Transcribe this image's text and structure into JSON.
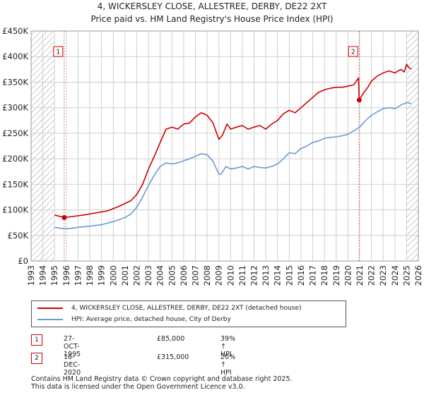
{
  "page": {
    "title_line1": "4, WICKERSLEY CLOSE, ALLESTREE, DERBY, DE22 2XT",
    "title_line2": "Price paid vs. HM Land Registry's House Price Index (HPI)"
  },
  "chart_data": {
    "type": "line",
    "ylim": [
      0,
      450000
    ],
    "xlim": [
      1993,
      2026
    ],
    "y_ticks": [
      0,
      50000,
      100000,
      150000,
      200000,
      250000,
      300000,
      350000,
      400000,
      450000
    ],
    "y_tick_labels": [
      "£0",
      "£50K",
      "£100K",
      "£150K",
      "£200K",
      "£250K",
      "£300K",
      "£350K",
      "£400K",
      "£450K"
    ],
    "x_ticks": [
      1993,
      1994,
      1995,
      1996,
      1997,
      1998,
      1999,
      2000,
      2001,
      2002,
      2003,
      2004,
      2005,
      2006,
      2007,
      2008,
      2009,
      2010,
      2011,
      2012,
      2013,
      2014,
      2015,
      2016,
      2017,
      2018,
      2019,
      2020,
      2021,
      2022,
      2023,
      2024,
      2025,
      2026
    ],
    "grid": true,
    "hatched_ranges": [
      [
        1993,
        1995.0
      ],
      [
        2025.0,
        2026
      ]
    ],
    "series": [
      {
        "name": "4, WICKERSLEY CLOSE, ALLESTREE, DERBY, DE22 2XT (detached house)",
        "color": "#cc0000",
        "x": [
          1995.0,
          1995.5,
          1995.82,
          1996.5,
          1997.5,
          1998.5,
          1999.5,
          2000.5,
          2001.5,
          2002.0,
          2002.5,
          2003.0,
          2003.5,
          2004.0,
          2004.5,
          2005.0,
          2005.5,
          2006.0,
          2006.5,
          2007.0,
          2007.5,
          2008.0,
          2008.5,
          2009.0,
          2009.3,
          2009.7,
          2010.0,
          2010.5,
          2011.0,
          2011.5,
          2012.0,
          2012.5,
          2013.0,
          2013.5,
          2014.0,
          2014.5,
          2015.0,
          2015.5,
          2016.0,
          2016.5,
          2017.0,
          2017.5,
          2018.0,
          2018.5,
          2019.0,
          2019.5,
          2020.0,
          2020.5,
          2020.9,
          2020.96,
          2021.3,
          2021.7,
          2022.0,
          2022.5,
          2023.0,
          2023.5,
          2024.0,
          2024.5,
          2024.8,
          2025.0,
          2025.2,
          2025.4
        ],
        "values": [
          90000,
          87000,
          85000,
          87000,
          90000,
          94000,
          98000,
          107000,
          118000,
          130000,
          150000,
          180000,
          205000,
          232000,
          258000,
          262000,
          258000,
          268000,
          270000,
          282000,
          290000,
          285000,
          270000,
          238000,
          246000,
          268000,
          258000,
          262000,
          265000,
          258000,
          262000,
          265000,
          258000,
          268000,
          275000,
          288000,
          295000,
          290000,
          300000,
          310000,
          320000,
          330000,
          335000,
          338000,
          340000,
          340000,
          342000,
          345000,
          358000,
          315000,
          328000,
          340000,
          352000,
          362000,
          368000,
          372000,
          368000,
          375000,
          370000,
          385000,
          378000,
          376000
        ]
      },
      {
        "name": "HPI: Average price, detached house, City of Derby",
        "color": "#6a9bd1",
        "x": [
          1995.0,
          1995.5,
          1996.0,
          1996.5,
          1997.0,
          1998.0,
          1999.0,
          2000.0,
          2001.0,
          2001.5,
          2002.0,
          2002.5,
          2003.0,
          2003.5,
          2004.0,
          2004.5,
          2005.0,
          2005.5,
          2006.0,
          2006.5,
          2007.0,
          2007.5,
          2008.0,
          2008.5,
          2009.0,
          2009.2,
          2009.6,
          2010.0,
          2010.5,
          2011.0,
          2011.5,
          2012.0,
          2012.5,
          2013.0,
          2013.5,
          2014.0,
          2014.5,
          2015.0,
          2015.5,
          2016.0,
          2016.5,
          2017.0,
          2017.5,
          2018.0,
          2018.5,
          2019.0,
          2019.5,
          2020.0,
          2020.5,
          2021.0,
          2021.5,
          2022.0,
          2022.5,
          2023.0,
          2023.5,
          2024.0,
          2024.5,
          2025.0,
          2025.4
        ],
        "values": [
          66000,
          64000,
          63000,
          64000,
          66000,
          68000,
          71000,
          77000,
          85000,
          92000,
          105000,
          125000,
          148000,
          168000,
          185000,
          192000,
          190000,
          192000,
          196000,
          200000,
          205000,
          210000,
          208000,
          195000,
          170000,
          170000,
          185000,
          180000,
          182000,
          185000,
          180000,
          185000,
          183000,
          182000,
          185000,
          190000,
          200000,
          212000,
          210000,
          220000,
          225000,
          232000,
          235000,
          240000,
          242000,
          243000,
          245000,
          248000,
          255000,
          262000,
          275000,
          285000,
          292000,
          298000,
          300000,
          298000,
          305000,
          310000,
          308000
        ]
      }
    ],
    "sales": [
      {
        "marker": "1",
        "x": 1995.82,
        "value": 85000
      },
      {
        "marker": "2",
        "x": 2020.96,
        "value": 315000
      }
    ]
  },
  "legend": {
    "property_label": "4, WICKERSLEY CLOSE, ALLESTREE, DERBY, DE22 2XT (detached house)",
    "hpi_label": "HPI: Average price, detached house, City of Derby"
  },
  "transactions": [
    {
      "marker": "1",
      "date": "27-OCT-1995",
      "price": "£85,000",
      "hpi_change": "39% ↑ HPI"
    },
    {
      "marker": "2",
      "date": "16-DEC-2020",
      "price": "£315,000",
      "hpi_change": "20% ↑ HPI"
    }
  ],
  "footer": {
    "line1": "Contains HM Land Registry data © Crown copyright and database right 2025.",
    "line2": "This data is licensed under the Open Government Licence v3.0."
  },
  "colors": {
    "property": "#cc0000",
    "hpi": "#6a9bd1",
    "grid": "#d0d0d0",
    "vline": "#cc0000"
  }
}
